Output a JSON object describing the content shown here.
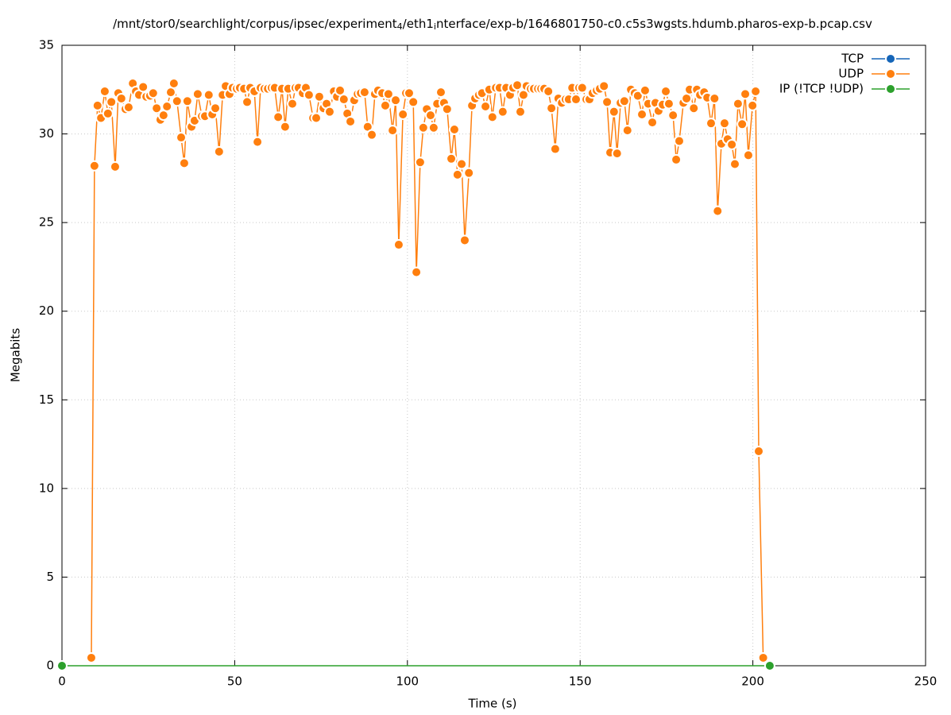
{
  "chart_data": {
    "type": "line",
    "title": [
      "/mnt/stor0/searchlight/corpus/ipsec/experiment",
      "4",
      "/eth1",
      "i",
      "nterface/exp-b/1646801750-c0.c5s3wgsts.hdumb.pharos-exp-b.pcap.csv"
    ],
    "x_label": "Time (s)",
    "y_label": "Megabits",
    "xlim": [
      0,
      250
    ],
    "ylim": [
      0,
      35
    ],
    "xticks": [
      0,
      50,
      100,
      150,
      200,
      250
    ],
    "yticks": [
      0,
      5,
      10,
      15,
      20,
      25,
      30,
      35
    ],
    "grid": true,
    "legend": "top right",
    "series": [
      {
        "name": "TCP",
        "color": "#1565b8",
        "x": [],
        "values": []
      },
      {
        "name": "UDP",
        "color": "#ff7f0e",
        "x": [
          8.5,
          9.4,
          10.3,
          11.3,
          12.4,
          13.3,
          14.3,
          15.4,
          16.3,
          17.2,
          18.4,
          19.3,
          20.5,
          21.4,
          22.3,
          23.5,
          24.4,
          25.5,
          26.4,
          27.4,
          28.5,
          29.4,
          30.4,
          31.5,
          32.4,
          33.3,
          34.5,
          35.4,
          36.3,
          37.5,
          38.4,
          39.3,
          40.5,
          41.4,
          42.5,
          43.5,
          44.4,
          45.5,
          46.5,
          47.4,
          48.5,
          49.4,
          50.6,
          51.5,
          52.7,
          53.6,
          54.5,
          55.7,
          56.6,
          57.5,
          58.6,
          59.6,
          60.7,
          61.6,
          62.6,
          63.7,
          64.6,
          65.5,
          66.7,
          67.6,
          68.5,
          69.7,
          70.6,
          71.5,
          72.7,
          73.6,
          74.5,
          75.7,
          76.6,
          77.5,
          78.7,
          79.6,
          80.5,
          81.6,
          82.6,
          83.5,
          84.6,
          85.6,
          86.5,
          87.6,
          88.5,
          89.7,
          90.6,
          91.5,
          92.7,
          93.6,
          94.5,
          95.7,
          96.6,
          97.5,
          98.7,
          99.6,
          100.5,
          101.7,
          102.6,
          103.7,
          104.6,
          105.6,
          106.7,
          107.6,
          108.6,
          109.7,
          110.6,
          111.5,
          112.7,
          113.6,
          114.5,
          115.7,
          116.6,
          117.8,
          118.7,
          119.6,
          120.7,
          121.6,
          122.6,
          123.7,
          124.6,
          125.6,
          126.7,
          127.6,
          128.6,
          129.7,
          130.6,
          131.8,
          132.7,
          133.6,
          134.5,
          135.7,
          136.6,
          137.8,
          138.7,
          139.6,
          140.8,
          141.7,
          142.8,
          143.7,
          144.7,
          145.8,
          146.7,
          147.7,
          148.8,
          149.7,
          150.6,
          151.8,
          152.7,
          153.6,
          154.8,
          155.7,
          156.9,
          157.8,
          158.7,
          159.8,
          160.7,
          161.7,
          162.8,
          163.7,
          164.7,
          165.8,
          166.7,
          167.9,
          168.8,
          169.7,
          170.9,
          171.8,
          172.7,
          173.9,
          174.8,
          175.7,
          176.9,
          177.8,
          178.7,
          179.9,
          180.8,
          181.7,
          182.9,
          183.8,
          184.7,
          185.9,
          186.8,
          187.9,
          188.9,
          189.8,
          190.9,
          191.8,
          192.7,
          193.9,
          194.8,
          195.7,
          196.9,
          197.8,
          198.7,
          199.9,
          200.8,
          201.7,
          203.0
        ],
        "values": [
          0.45,
          28.2,
          31.6,
          30.9,
          32.4,
          31.15,
          31.8,
          28.15,
          32.3,
          32.0,
          31.4,
          31.5,
          32.85,
          32.4,
          32.2,
          32.65,
          32.1,
          32.15,
          32.3,
          31.45,
          30.8,
          31.05,
          31.55,
          32.35,
          32.85,
          31.85,
          29.8,
          28.35,
          31.85,
          30.4,
          30.75,
          32.25,
          31.0,
          31.0,
          32.2,
          31.1,
          31.45,
          29.0,
          32.2,
          32.7,
          32.25,
          32.6,
          32.55,
          32.6,
          32.55,
          31.8,
          32.6,
          32.4,
          29.55,
          32.6,
          32.55,
          32.55,
          32.6,
          32.6,
          30.95,
          32.55,
          30.4,
          32.55,
          31.7,
          32.6,
          32.6,
          32.3,
          32.6,
          32.2,
          30.9,
          30.9,
          32.1,
          31.45,
          31.7,
          31.25,
          32.4,
          32.1,
          32.45,
          31.95,
          31.15,
          30.7,
          31.9,
          32.25,
          32.3,
          32.35,
          30.4,
          29.95,
          32.25,
          32.45,
          32.3,
          31.6,
          32.25,
          30.2,
          31.9,
          23.75,
          31.1,
          32.3,
          32.3,
          31.8,
          22.2,
          28.4,
          30.35,
          31.4,
          31.05,
          30.35,
          31.7,
          32.35,
          31.75,
          31.4,
          28.6,
          30.25,
          27.7,
          28.3,
          24.0,
          27.8,
          31.6,
          32.0,
          32.2,
          32.3,
          31.55,
          32.5,
          30.95,
          32.6,
          32.6,
          31.25,
          32.6,
          32.2,
          32.6,
          32.75,
          31.25,
          32.2,
          32.7,
          32.55,
          32.55,
          32.55,
          32.55,
          32.55,
          32.4,
          31.45,
          29.15,
          32.0,
          31.75,
          31.95,
          31.95,
          32.6,
          31.95,
          32.6,
          32.6,
          31.95,
          31.95,
          32.3,
          32.45,
          32.55,
          32.7,
          31.8,
          28.95,
          31.25,
          28.9,
          31.75,
          31.85,
          30.2,
          32.5,
          32.3,
          32.15,
          31.1,
          32.45,
          31.7,
          30.65,
          31.75,
          31.3,
          31.65,
          32.4,
          31.7,
          31.05,
          28.55,
          29.6,
          31.75,
          32.0,
          32.5,
          31.45,
          32.5,
          32.2,
          32.35,
          32.05,
          30.6,
          32.0,
          25.65,
          29.45,
          30.6,
          29.7,
          29.4,
          28.3,
          31.7,
          30.55,
          32.25,
          28.8,
          31.6,
          32.4,
          12.1,
          0.45
        ]
      },
      {
        "name": "IP (!TCP  !UDP)",
        "color": "#2ca02c",
        "x": [
          0,
          204.9
        ],
        "values": [
          0,
          0
        ]
      }
    ]
  }
}
